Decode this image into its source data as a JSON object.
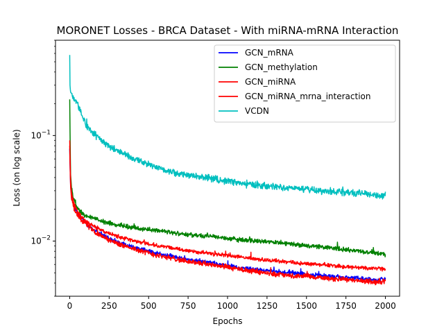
{
  "chart_data": {
    "type": "line",
    "title": "MORONET Losses - BRCA Dataset - With miRNA-mRNA Interaction",
    "xlabel": "Epochs",
    "ylabel": "Loss (on log scale)",
    "yscale": "log",
    "xlim": [
      -90,
      2090
    ],
    "ylim": [
      0.003,
      0.8
    ],
    "x_ticks": [
      0,
      250,
      500,
      750,
      1000,
      1250,
      1500,
      1750,
      2000
    ],
    "x_tick_labels": [
      "0",
      "250",
      "500",
      "750",
      "1000",
      "1250",
      "1500",
      "1750",
      "2000"
    ],
    "y_ticks": [
      0.01,
      0.1
    ],
    "y_tick_labels": [
      {
        "base": "10",
        "exp": "−2"
      },
      {
        "base": "10",
        "exp": "−1"
      }
    ],
    "y_minor_ticks": [
      0.003,
      0.004,
      0.005,
      0.006,
      0.007,
      0.008,
      0.009,
      0.02,
      0.03,
      0.04,
      0.05,
      0.06,
      0.07,
      0.08,
      0.09,
      0.2,
      0.3,
      0.4,
      0.5,
      0.6,
      0.7,
      0.8
    ],
    "grid": false,
    "legend_position": "top-right",
    "series": [
      {
        "name": "GCN_mRNA",
        "color": "#0000ff",
        "noise": 0.035,
        "x": [
          0,
          5,
          10,
          20,
          30,
          50,
          75,
          100,
          150,
          200,
          250,
          300,
          400,
          500,
          600,
          750,
          900,
          1000,
          1100,
          1250,
          1400,
          1500,
          1600,
          1750,
          1850,
          1950,
          2000
        ],
        "y": [
          0.075,
          0.035,
          0.028,
          0.024,
          0.021,
          0.0185,
          0.0165,
          0.015,
          0.0128,
          0.0115,
          0.0105,
          0.0098,
          0.0088,
          0.008,
          0.0074,
          0.0067,
          0.0062,
          0.0058,
          0.0055,
          0.0052,
          0.005,
          0.0048,
          0.0047,
          0.0045,
          0.0044,
          0.0043,
          0.0043
        ]
      },
      {
        "name": "GCN_methylation",
        "color": "#008000",
        "noise": 0.035,
        "x": [
          0,
          5,
          10,
          20,
          30,
          50,
          75,
          100,
          150,
          200,
          250,
          300,
          400,
          500,
          600,
          750,
          900,
          1000,
          1100,
          1250,
          1400,
          1500,
          1600,
          1750,
          1850,
          1950,
          2000
        ],
        "y": [
          0.22,
          0.045,
          0.033,
          0.027,
          0.024,
          0.02,
          0.0185,
          0.0175,
          0.0165,
          0.0155,
          0.0148,
          0.0142,
          0.0135,
          0.0128,
          0.0123,
          0.0115,
          0.011,
          0.0106,
          0.0102,
          0.0098,
          0.0094,
          0.009,
          0.0088,
          0.0083,
          0.008,
          0.0077,
          0.0074
        ]
      },
      {
        "name": "GCN_miRNA",
        "color": "#ff0000",
        "noise": 0.03,
        "x": [
          0,
          5,
          10,
          20,
          30,
          50,
          75,
          100,
          150,
          200,
          250,
          300,
          400,
          500,
          600,
          750,
          900,
          1000,
          1100,
          1250,
          1400,
          1500,
          1600,
          1750,
          1850,
          1950,
          2000
        ],
        "y": [
          0.09,
          0.04,
          0.03,
          0.025,
          0.022,
          0.019,
          0.0168,
          0.0155,
          0.0138,
          0.0128,
          0.0118,
          0.0111,
          0.0101,
          0.0094,
          0.0088,
          0.0081,
          0.0076,
          0.0073,
          0.007,
          0.0066,
          0.0063,
          0.0061,
          0.006,
          0.0057,
          0.0056,
          0.0055,
          0.0054
        ]
      },
      {
        "name": "GCN_miRNA_mrna_interaction",
        "color": "#ff0000",
        "noise": 0.04,
        "x": [
          0,
          5,
          10,
          20,
          30,
          50,
          75,
          100,
          150,
          200,
          250,
          300,
          400,
          500,
          600,
          750,
          900,
          1000,
          1100,
          1250,
          1400,
          1500,
          1600,
          1750,
          1850,
          1950,
          2000
        ],
        "y": [
          0.08,
          0.034,
          0.027,
          0.023,
          0.02,
          0.0178,
          0.016,
          0.0147,
          0.0125,
          0.0112,
          0.0102,
          0.0095,
          0.0085,
          0.0077,
          0.0071,
          0.0064,
          0.006,
          0.0056,
          0.0053,
          0.005,
          0.0047,
          0.0046,
          0.0045,
          0.0043,
          0.0042,
          0.0041,
          0.0042
        ]
      },
      {
        "name": "VCDN",
        "color": "#00bfbf",
        "noise": 0.055,
        "x": [
          0,
          2,
          5,
          10,
          20,
          30,
          50,
          75,
          100,
          150,
          200,
          250,
          300,
          400,
          500,
          600,
          750,
          900,
          1000,
          1100,
          1250,
          1400,
          1500,
          1600,
          1750,
          1850,
          1950,
          2000
        ],
        "y": [
          0.58,
          0.3,
          0.26,
          0.25,
          0.235,
          0.22,
          0.2,
          0.16,
          0.13,
          0.105,
          0.09,
          0.079,
          0.072,
          0.061,
          0.053,
          0.047,
          0.042,
          0.039,
          0.037,
          0.035,
          0.033,
          0.032,
          0.031,
          0.03,
          0.029,
          0.028,
          0.027,
          0.027
        ]
      }
    ]
  }
}
